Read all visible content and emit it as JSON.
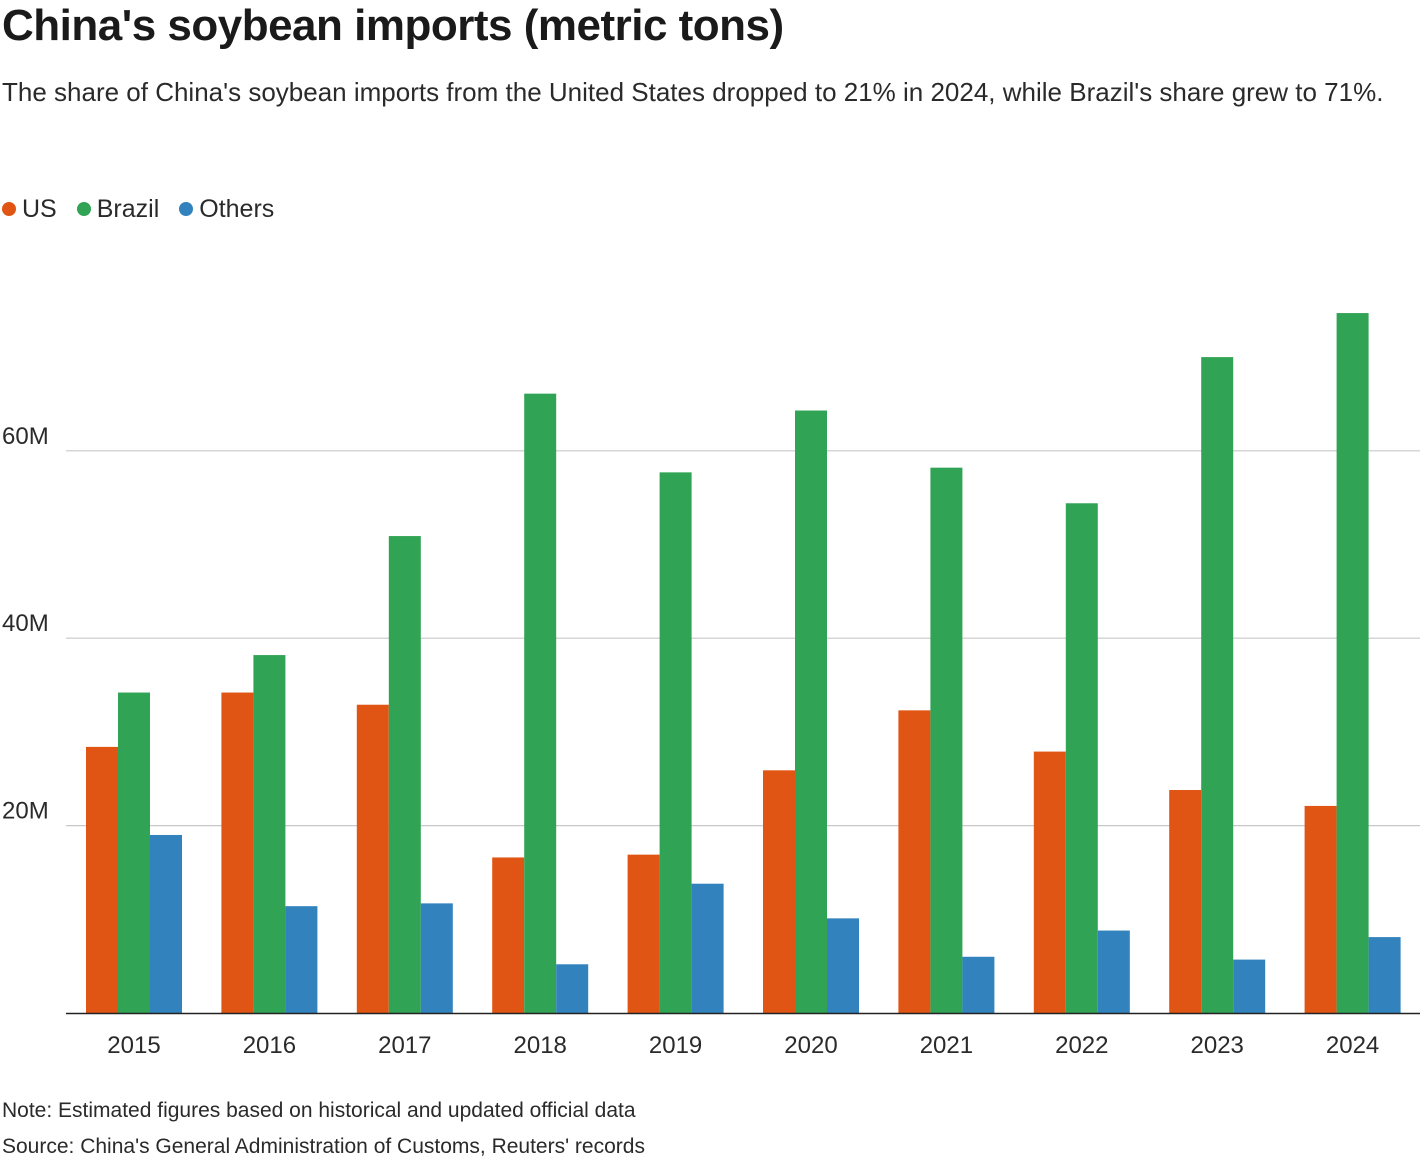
{
  "header": {
    "title": "China's soybean imports (metric tons)",
    "subtitle": "The share of China's soybean imports from the United States dropped to 21% in 2024, while Brazil's share grew to 71%."
  },
  "legend": [
    {
      "label": "US",
      "color": "#e05513"
    },
    {
      "label": "Brazil",
      "color": "#31a354"
    },
    {
      "label": "Others",
      "color": "#3182bd"
    }
  ],
  "chart_data": {
    "type": "bar",
    "title": "China's soybean imports (metric tons)",
    "subtitle": "The share of China's soybean imports from the United States dropped to 21% in 2024, while Brazil's share grew to 71%.",
    "categories": [
      "2015",
      "2016",
      "2017",
      "2018",
      "2019",
      "2020",
      "2021",
      "2022",
      "2023",
      "2024"
    ],
    "series": [
      {
        "name": "US",
        "color": "#e05513",
        "values": [
          28.4,
          34.2,
          32.9,
          16.6,
          16.9,
          25.9,
          32.3,
          27.9,
          23.8,
          22.1
        ]
      },
      {
        "name": "Brazil",
        "color": "#31a354",
        "values": [
          34.2,
          38.2,
          50.9,
          66.1,
          57.7,
          64.3,
          58.2,
          54.4,
          70.0,
          74.7
        ]
      },
      {
        "name": "Others",
        "color": "#3182bd",
        "values": [
          19.0,
          11.4,
          11.7,
          5.2,
          13.8,
          10.1,
          6.0,
          8.8,
          5.7,
          8.1
        ]
      }
    ],
    "y_ticks": [
      "20M",
      "40M",
      "60M"
    ],
    "y_tick_values": [
      20,
      40,
      60
    ],
    "ylim": [
      0,
      80
    ],
    "unit": "M",
    "xlabel": "",
    "ylabel": "",
    "grid": true,
    "legend_position": "top-left"
  },
  "footer": {
    "note": "Note: Estimated figures based on historical and updated official data",
    "source": "Source: China's General Administration of Customs, Reuters' records"
  }
}
